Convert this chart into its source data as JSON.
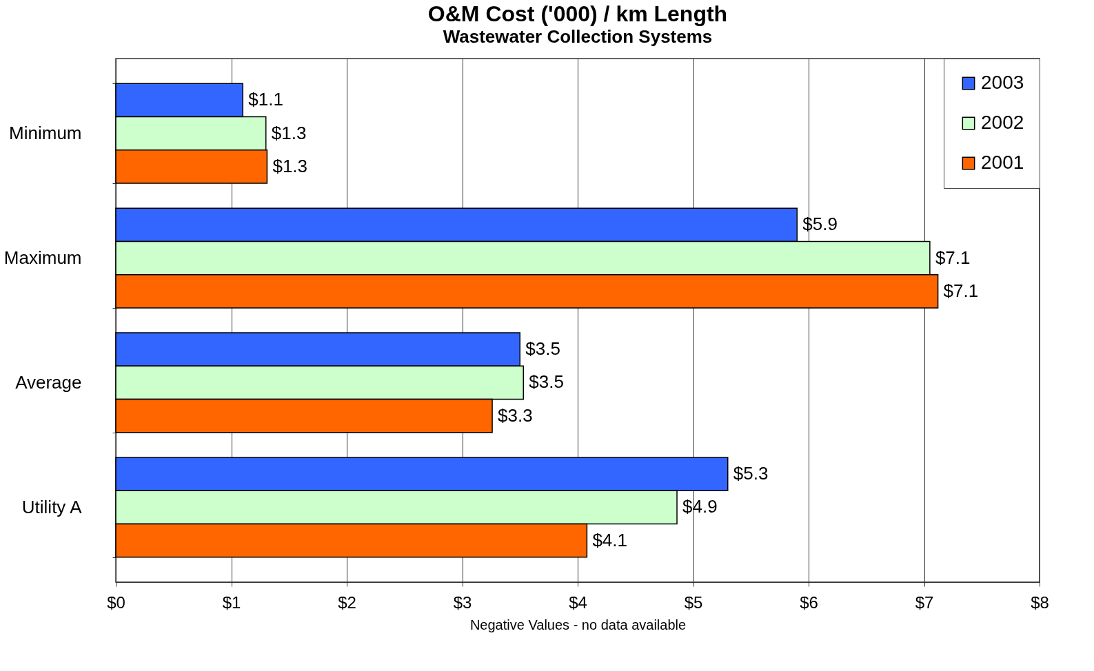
{
  "chart_data": {
    "type": "bar",
    "orientation": "horizontal",
    "title": "O&M Cost ('000) / km Length",
    "subtitle": "Wastewater Collection Systems",
    "xlabel": "Negative Values - no data available",
    "categories": [
      "Minimum",
      "Maximum",
      "Average",
      "Utility A"
    ],
    "series": [
      {
        "name": "2003",
        "color": "#3366ff",
        "values": [
          1.1,
          5.9,
          3.5,
          5.3
        ],
        "value_labels": [
          "$1.1",
          "$5.9",
          "$3.5",
          "$5.3"
        ]
      },
      {
        "name": "2002",
        "color": "#ccffcc",
        "values": [
          1.3,
          7.05,
          3.53,
          4.86
        ],
        "value_labels": [
          "$1.3",
          "$7.1",
          "$3.5",
          "$4.9"
        ]
      },
      {
        "name": "2001",
        "color": "#ff6600",
        "values": [
          1.31,
          7.12,
          3.26,
          4.08
        ],
        "value_labels": [
          "$1.3",
          "$7.1",
          "$3.3",
          "$4.1"
        ]
      }
    ],
    "xlim": [
      0,
      8
    ],
    "xticks": [
      {
        "value": 0,
        "label": "$0"
      },
      {
        "value": 1,
        "label": "$1"
      },
      {
        "value": 2,
        "label": "$2"
      },
      {
        "value": 3,
        "label": "$3"
      },
      {
        "value": 4,
        "label": "$4"
      },
      {
        "value": 5,
        "label": "$5"
      },
      {
        "value": 6,
        "label": "$6"
      },
      {
        "value": 7,
        "label": "$7"
      },
      {
        "value": 8,
        "label": "$8"
      }
    ],
    "grid": "x",
    "legend": "top right"
  }
}
